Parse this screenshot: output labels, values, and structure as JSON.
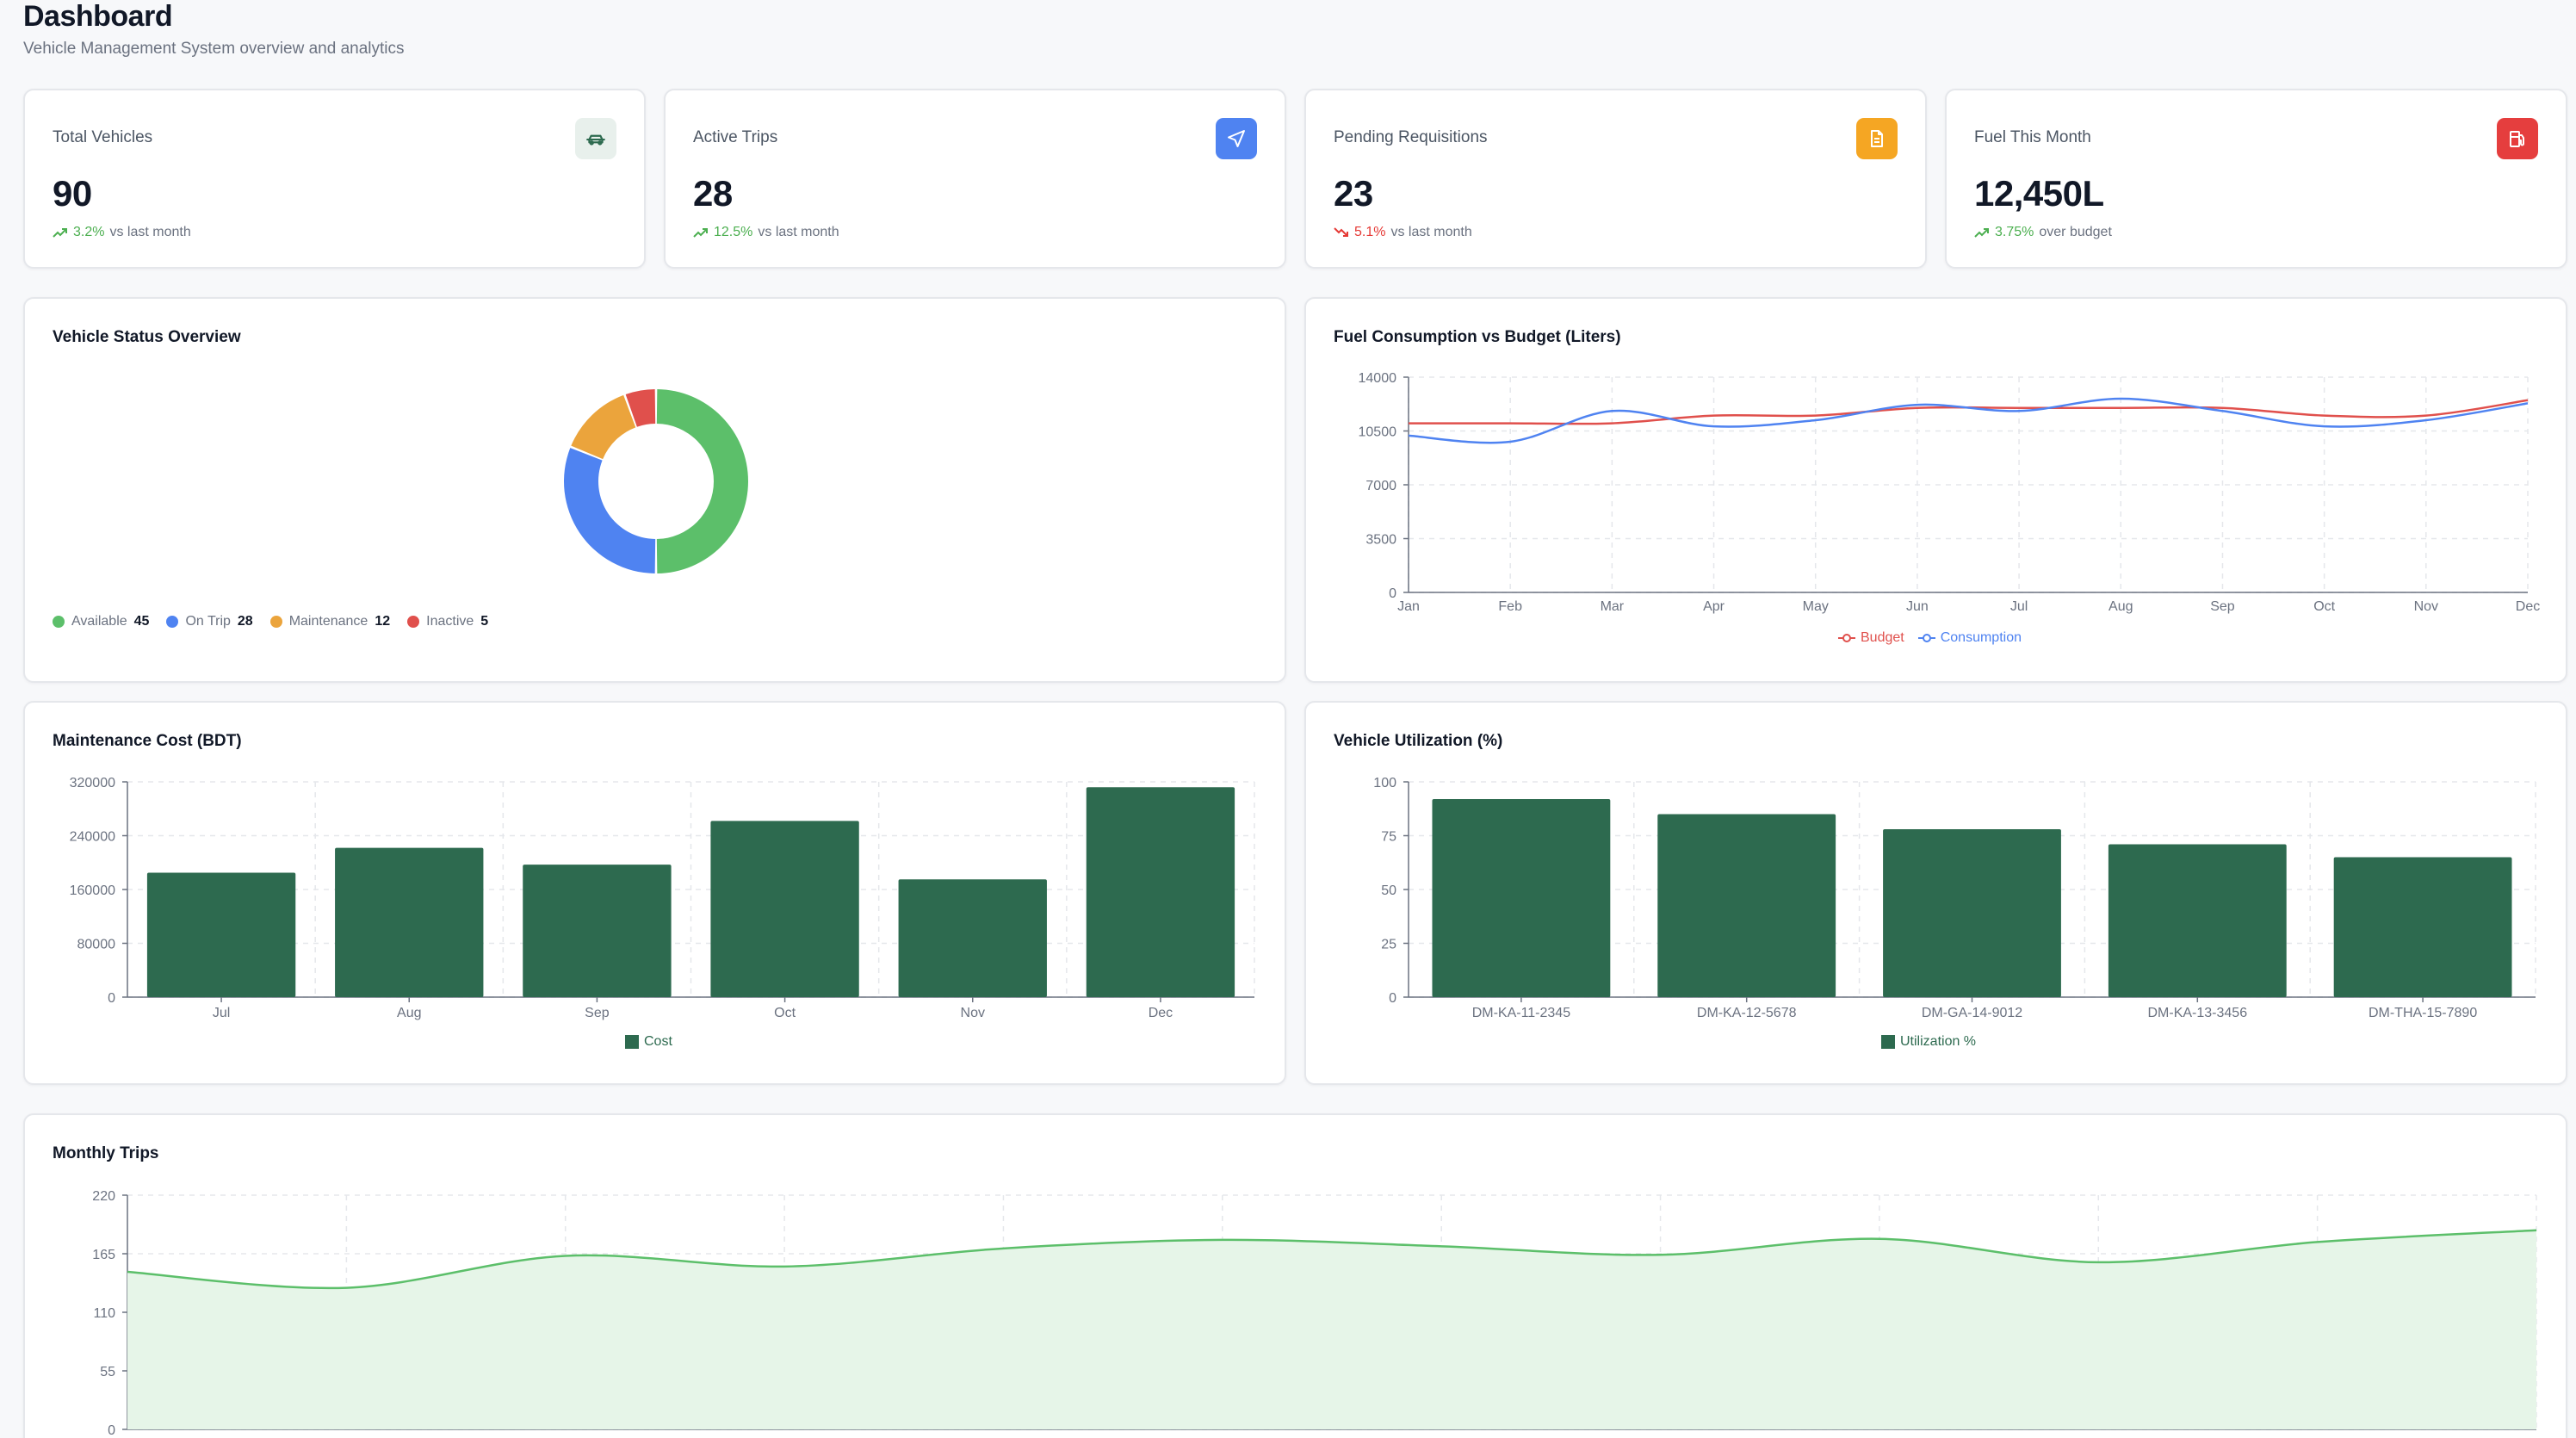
{
  "header": {
    "title": "Dashboard",
    "subtitle": "Vehicle Management System overview and analytics"
  },
  "stats": [
    {
      "label": "Total Vehicles",
      "value": "90",
      "trend_pct": "3.2%",
      "trend_text": "vs last month",
      "direction": "up",
      "icon": "car-icon",
      "icon_bg": "#e8f0ec",
      "icon_color": "#2d6a4f"
    },
    {
      "label": "Active Trips",
      "value": "28",
      "trend_pct": "12.5%",
      "trend_text": "vs last month",
      "direction": "up",
      "icon": "navigation-icon",
      "icon_bg": "#4f83f1",
      "icon_color": "#ffffff"
    },
    {
      "label": "Pending Requisitions",
      "value": "23",
      "trend_pct": "5.1%",
      "trend_text": "vs last month",
      "direction": "down",
      "icon": "document-icon",
      "icon_bg": "#f5a623",
      "icon_color": "#ffffff"
    },
    {
      "label": "Fuel This Month",
      "value": "12,450L",
      "trend_pct": "3.75%",
      "trend_text": "over budget",
      "direction": "up",
      "icon": "fuel-icon",
      "icon_bg": "#e53e3e",
      "icon_color": "#ffffff"
    }
  ],
  "colors": {
    "available": "#5cbf6a",
    "on_trip": "#4f83f1",
    "maintenance": "#eba43c",
    "inactive": "#e0504c",
    "budget": "#e0504c",
    "consumption": "#4f83f1",
    "bar": "#2d6a4f",
    "trips_line": "#5cbf6a",
    "trips_fill": "#e6f5e8"
  },
  "charts": {
    "status": {
      "title": "Vehicle Status Overview",
      "chart_data": {
        "type": "pie",
        "variant": "donut",
        "slices": [
          {
            "label": "Available",
            "value": 45
          },
          {
            "label": "On Trip",
            "value": 28
          },
          {
            "label": "Maintenance",
            "value": 12
          },
          {
            "label": "Inactive",
            "value": 5
          }
        ],
        "legend_position": "bottom-left"
      }
    },
    "fuel": {
      "title": "Fuel Consumption vs Budget (Liters)",
      "chart_data": {
        "type": "line",
        "categories": [
          "Jan",
          "Feb",
          "Mar",
          "Apr",
          "May",
          "Jun",
          "Jul",
          "Aug",
          "Sep",
          "Oct",
          "Nov",
          "Dec"
        ],
        "series": [
          {
            "name": "Budget",
            "values": [
              11000,
              11000,
              11000,
              11500,
              11500,
              12000,
              12000,
              12000,
              12000,
              11500,
              11500,
              12500
            ]
          },
          {
            "name": "Consumption",
            "values": [
              10200,
              9800,
              11800,
              10800,
              11200,
              12200,
              11800,
              12600,
              11800,
              10800,
              11200,
              12300
            ]
          }
        ],
        "yticks": [
          0,
          3500,
          7000,
          10500,
          14000
        ],
        "ylim": [
          0,
          14000
        ],
        "grid": true,
        "legend_position": "bottom"
      }
    },
    "maintenance": {
      "title": "Maintenance Cost (BDT)",
      "chart_data": {
        "type": "bar",
        "categories": [
          "Jul",
          "Aug",
          "Sep",
          "Oct",
          "Nov",
          "Dec"
        ],
        "series": [
          {
            "name": "Cost",
            "values": [
              185000,
              222000,
              197000,
              262000,
              175000,
              312000
            ]
          }
        ],
        "yticks": [
          0,
          80000,
          160000,
          240000,
          320000
        ],
        "ylim": [
          0,
          320000
        ],
        "grid": true,
        "legend_position": "bottom"
      }
    },
    "utilization": {
      "title": "Vehicle Utilization (%)",
      "chart_data": {
        "type": "bar",
        "categories": [
          "DM-KA-11-2345",
          "DM-KA-12-5678",
          "DM-GA-14-9012",
          "DM-KA-13-3456",
          "DM-THA-15-7890"
        ],
        "series": [
          {
            "name": "Utilization %",
            "values": [
              92,
              85,
              78,
              71,
              65
            ]
          }
        ],
        "yticks": [
          0,
          25,
          50,
          75,
          100
        ],
        "ylim": [
          0,
          100
        ],
        "grid": true,
        "legend_position": "bottom"
      }
    },
    "trips": {
      "title": "Monthly Trips",
      "chart_data": {
        "type": "area",
        "points": [
          148,
          133,
          163,
          153,
          170,
          178,
          172,
          164,
          179,
          157,
          176,
          187
        ],
        "yticks": [
          0,
          55,
          110,
          165,
          220
        ],
        "ylim": [
          0,
          220
        ],
        "grid": true
      }
    }
  }
}
